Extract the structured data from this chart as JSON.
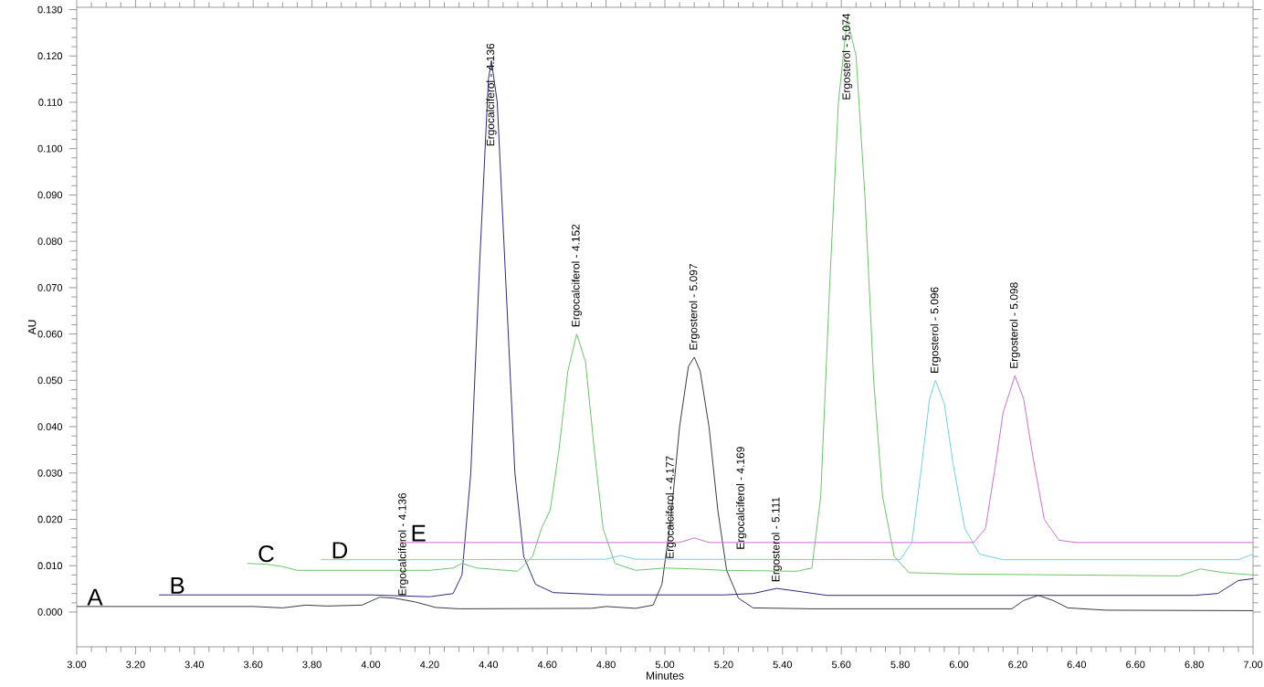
{
  "chart_data": {
    "type": "line",
    "xlabel": "Minutes",
    "ylabel": "AU",
    "xlim": [
      3.0,
      7.0
    ],
    "ylim": [
      -0.0075,
      0.1305
    ],
    "xticks": [
      {
        "value": 3.0,
        "label": "3.00"
      },
      {
        "value": 3.2,
        "label": "3.20"
      },
      {
        "value": 3.4,
        "label": "3.40"
      },
      {
        "value": 3.6,
        "label": "3.60"
      },
      {
        "value": 3.8,
        "label": "3.80"
      },
      {
        "value": 4.0,
        "label": "4.00"
      },
      {
        "value": 4.2,
        "label": "4.20"
      },
      {
        "value": 4.4,
        "label": "4.40"
      },
      {
        "value": 4.6,
        "label": "4.60"
      },
      {
        "value": 4.8,
        "label": "4.80"
      },
      {
        "value": 5.0,
        "label": "5.00"
      },
      {
        "value": 5.2,
        "label": "5.20"
      },
      {
        "value": 5.4,
        "label": "5.40"
      },
      {
        "value": 5.6,
        "label": "5.60"
      },
      {
        "value": 5.8,
        "label": "5.80"
      },
      {
        "value": 6.0,
        "label": "6.00"
      },
      {
        "value": 6.2,
        "label": "6.20"
      },
      {
        "value": 6.4,
        "label": "6.40"
      },
      {
        "value": 6.6,
        "label": "6.60"
      },
      {
        "value": 6.8,
        "label": "6.80"
      },
      {
        "value": 7.0,
        "label": "7.00"
      }
    ],
    "yticks": [
      {
        "value": 0.0,
        "label": "0.000"
      },
      {
        "value": 0.01,
        "label": "0.010"
      },
      {
        "value": 0.02,
        "label": "0.020"
      },
      {
        "value": 0.03,
        "label": "0.030"
      },
      {
        "value": 0.04,
        "label": "0.040"
      },
      {
        "value": 0.05,
        "label": "0.050"
      },
      {
        "value": 0.06,
        "label": "0.060"
      },
      {
        "value": 0.07,
        "label": "0.070"
      },
      {
        "value": 0.08,
        "label": "0.080"
      },
      {
        "value": 0.09,
        "label": "0.090"
      },
      {
        "value": 0.1,
        "label": "0.100"
      },
      {
        "value": 0.11,
        "label": "0.110"
      },
      {
        "value": 0.12,
        "label": "0.120"
      },
      {
        "value": 0.13,
        "label": "0.130"
      }
    ],
    "grid": false,
    "legend": false,
    "marker": "none",
    "line_style": "solid",
    "series": [
      {
        "name": "A",
        "color": "#3a3a3a",
        "x": [
          3.0,
          3.6,
          3.7,
          3.78,
          3.85,
          3.97,
          4.03,
          4.08,
          4.15,
          4.22,
          4.3,
          4.75,
          4.8,
          4.9,
          4.96,
          4.99,
          5.02,
          5.05,
          5.08,
          5.1,
          5.12,
          5.15,
          5.18,
          5.21,
          5.25,
          5.3,
          5.5,
          6.18,
          6.22,
          6.27,
          6.32,
          6.37,
          6.5,
          7.0
        ],
        "values": [
          0.0012,
          0.0012,
          0.0009,
          0.0015,
          0.0013,
          0.0015,
          0.0032,
          0.003,
          0.0022,
          0.001,
          0.0007,
          0.0008,
          0.0012,
          0.0008,
          0.0015,
          0.006,
          0.02,
          0.04,
          0.053,
          0.055,
          0.052,
          0.04,
          0.022,
          0.009,
          0.003,
          0.0009,
          0.0007,
          0.0007,
          0.0025,
          0.0036,
          0.0025,
          0.0009,
          0.0004,
          0.0003
        ]
      },
      {
        "name": "B",
        "color": "#2b2b80",
        "x": [
          3.28,
          4.0,
          4.2,
          4.28,
          4.31,
          4.34,
          4.37,
          4.4,
          4.41,
          4.43,
          4.46,
          4.49,
          4.52,
          4.56,
          4.62,
          4.8,
          5.2,
          5.3,
          5.38,
          5.45,
          5.55,
          6.8,
          6.88,
          6.95,
          7.0
        ],
        "values": [
          0.0037,
          0.0037,
          0.0033,
          0.004,
          0.008,
          0.03,
          0.075,
          0.115,
          0.119,
          0.11,
          0.07,
          0.03,
          0.012,
          0.006,
          0.0042,
          0.0037,
          0.0037,
          0.004,
          0.0051,
          0.0045,
          0.0036,
          0.0036,
          0.004,
          0.0068,
          0.0072
        ]
      },
      {
        "name": "C",
        "color": "#6cc46c",
        "x": [
          3.58,
          3.65,
          3.7,
          3.75,
          4.2,
          4.28,
          4.31,
          4.36,
          4.5,
          4.55,
          4.58,
          4.61,
          4.64,
          4.67,
          4.7,
          4.73,
          4.76,
          4.79,
          4.83,
          4.9,
          5.0,
          5.1,
          5.2,
          5.45,
          5.5,
          5.53,
          5.56,
          5.59,
          5.62,
          5.65,
          5.68,
          5.71,
          5.74,
          5.78,
          5.83,
          6.0,
          6.75,
          6.82,
          6.9,
          7.0
        ],
        "values": [
          0.0105,
          0.0103,
          0.0098,
          0.009,
          0.009,
          0.0095,
          0.0105,
          0.0095,
          0.0088,
          0.012,
          0.018,
          0.022,
          0.035,
          0.052,
          0.06,
          0.054,
          0.035,
          0.018,
          0.0105,
          0.009,
          0.0095,
          0.0093,
          0.009,
          0.0088,
          0.0095,
          0.025,
          0.07,
          0.11,
          0.128,
          0.12,
          0.09,
          0.05,
          0.025,
          0.012,
          0.0085,
          0.0082,
          0.0078,
          0.0093,
          0.0085,
          0.008
        ]
      },
      {
        "name": "D",
        "color": "#6fd4e0",
        "x": [
          3.83,
          4.3,
          4.8,
          4.85,
          4.9,
          5.8,
          5.84,
          5.87,
          5.9,
          5.92,
          5.95,
          5.98,
          6.02,
          6.07,
          6.15,
          6.95,
          7.0
        ],
        "values": [
          0.0113,
          0.0113,
          0.0114,
          0.0122,
          0.0114,
          0.0113,
          0.015,
          0.03,
          0.046,
          0.05,
          0.045,
          0.032,
          0.018,
          0.0125,
          0.0113,
          0.0113,
          0.0125
        ]
      },
      {
        "name": "E",
        "color": "#d070d0",
        "x": [
          4.1,
          5.05,
          5.1,
          5.15,
          6.05,
          6.09,
          6.12,
          6.15,
          6.19,
          6.22,
          6.25,
          6.29,
          6.34,
          6.4,
          7.0
        ],
        "values": [
          0.015,
          0.015,
          0.016,
          0.015,
          0.015,
          0.018,
          0.03,
          0.043,
          0.051,
          0.046,
          0.034,
          0.02,
          0.0155,
          0.015,
          0.015
        ]
      }
    ],
    "annotations": [
      {
        "text": "Ergocalciferol - 4.136",
        "x": 4.11,
        "y": 0.003
      },
      {
        "text": "Ergocalciferol - 4.136",
        "x": 4.41,
        "y": 0.1
      },
      {
        "text": "Ergocalciferol - 4.152",
        "x": 4.7,
        "y": 0.061
      },
      {
        "text": "Ergocalciferol - 4.177",
        "x": 5.02,
        "y": 0.011
      },
      {
        "text": "Ergosterol - 5.097",
        "x": 5.1,
        "y": 0.056
      },
      {
        "text": "Ergocalciferol - 4.169",
        "x": 5.26,
        "y": 0.013
      },
      {
        "text": "Ergosterol - 5.111",
        "x": 5.38,
        "y": 0.006
      },
      {
        "text": "Ergosterol - 5.074",
        "x": 5.62,
        "y": 0.11
      },
      {
        "text": "Ergosterol - 5.096",
        "x": 5.92,
        "y": 0.051
      },
      {
        "text": "Ergosterol - 5.098",
        "x": 6.19,
        "y": 0.052
      }
    ]
  }
}
